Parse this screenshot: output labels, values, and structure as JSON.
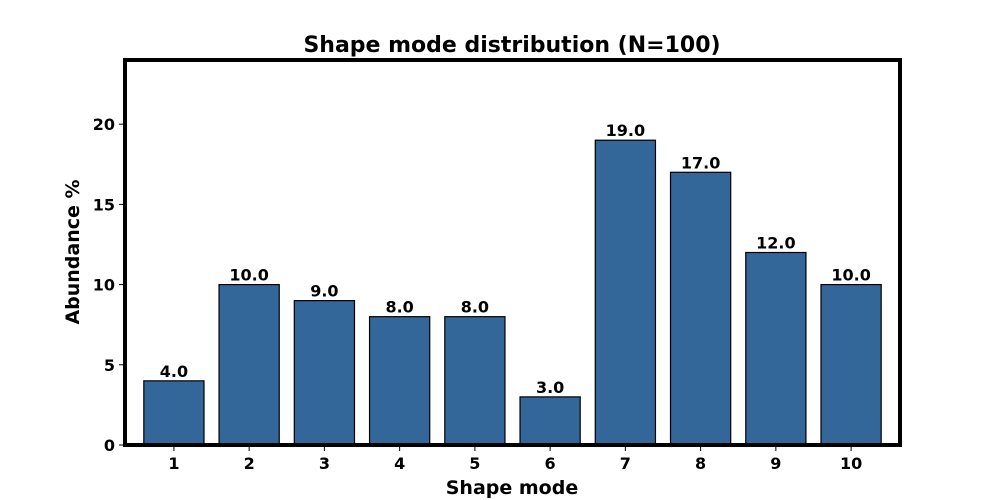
{
  "chart_data": {
    "type": "bar",
    "title": "Shape mode distribution (N=100)",
    "xlabel": "Shape mode",
    "ylabel": "Abundance %",
    "categories": [
      "1",
      "2",
      "3",
      "4",
      "5",
      "6",
      "7",
      "8",
      "9",
      "10"
    ],
    "values": [
      4.0,
      10.0,
      9.0,
      8.0,
      8.0,
      3.0,
      19.0,
      17.0,
      12.0,
      10.0
    ],
    "data_labels": [
      "4.0",
      "10.0",
      "9.0",
      "8.0",
      "8.0",
      "3.0",
      "19.0",
      "17.0",
      "12.0",
      "10.0"
    ],
    "yticks": [
      "0",
      "5",
      "10",
      "15",
      "20"
    ],
    "ylim": [
      0,
      24
    ],
    "grid": false,
    "bar_color": "#336699",
    "bar_edge_color": "#000000"
  }
}
